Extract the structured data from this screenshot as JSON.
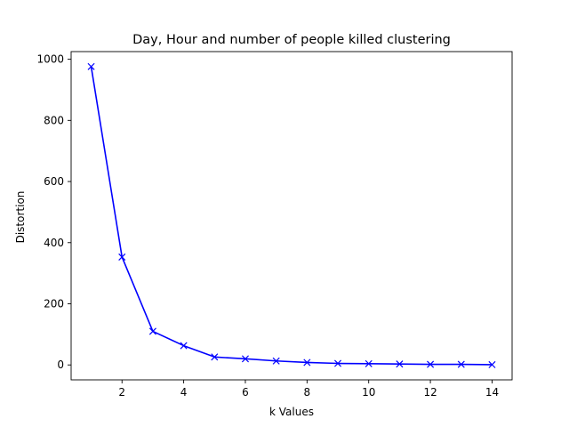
{
  "chart_data": {
    "type": "line",
    "title": "Day, Hour and number of people killed clustering",
    "xlabel": "k Values",
    "ylabel": "Distortion",
    "x": [
      1,
      2,
      3,
      4,
      5,
      6,
      7,
      8,
      9,
      10,
      11,
      12,
      13,
      14
    ],
    "series": [
      {
        "values": [
          976,
          353,
          110,
          63,
          26,
          20,
          13,
          8,
          5,
          4,
          3,
          2,
          2,
          1
        ],
        "color": "#0000ff",
        "marker": "x"
      }
    ],
    "xlim": [
      0.35,
      14.65
    ],
    "ylim": [
      -48.8,
      1025
    ],
    "xticks": [
      2,
      4,
      6,
      8,
      10,
      12,
      14
    ],
    "yticks": [
      0,
      200,
      400,
      600,
      800,
      1000
    ],
    "grid": false,
    "legend": "none"
  }
}
